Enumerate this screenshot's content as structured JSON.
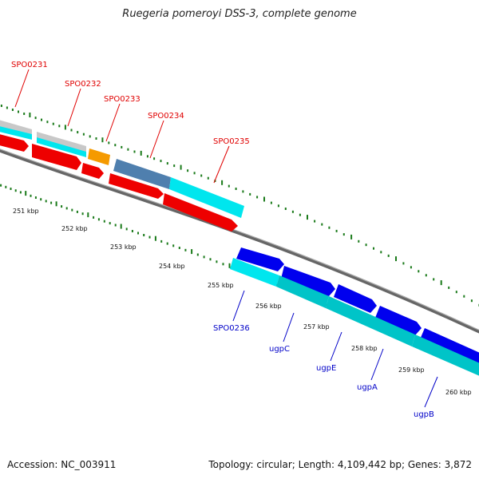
{
  "title": "Ruegeria pomeroyi DSS-3, complete genome",
  "footer": {
    "accession": "Accession: NC_003911",
    "summary": "Topology: circular; Length: 4,109,442 bp; Genes: 3,872"
  },
  "colors": {
    "backbone": "#777777",
    "tick": "#1a7a1a",
    "label_red": "#e00000",
    "label_blue": "#0000c8",
    "red_gene": "#ee0000",
    "cyan_gene": "#00e6ee",
    "blue_gene": "#0000ee",
    "teal_gene": "#00c4c8",
    "grey_gene": "#c8c8c8",
    "orange_gene": "#f59a00",
    "steel_gene": "#4f7fae"
  },
  "kbp_labels": [
    "251 kbp",
    "252 kbp",
    "253 kbp",
    "254 kbp",
    "255 kbp",
    "256 kbp",
    "257 kbp",
    "258 kbp",
    "259 kbp",
    "260 kbp"
  ],
  "gene_labels_top": [
    "SPO0231",
    "SPO0232",
    "SPO0233",
    "SPO0234",
    "SPO0235"
  ],
  "gene_labels_bottom": [
    "SPO0236",
    "ugpC",
    "ugpE",
    "ugpA",
    "ugpB"
  ]
}
